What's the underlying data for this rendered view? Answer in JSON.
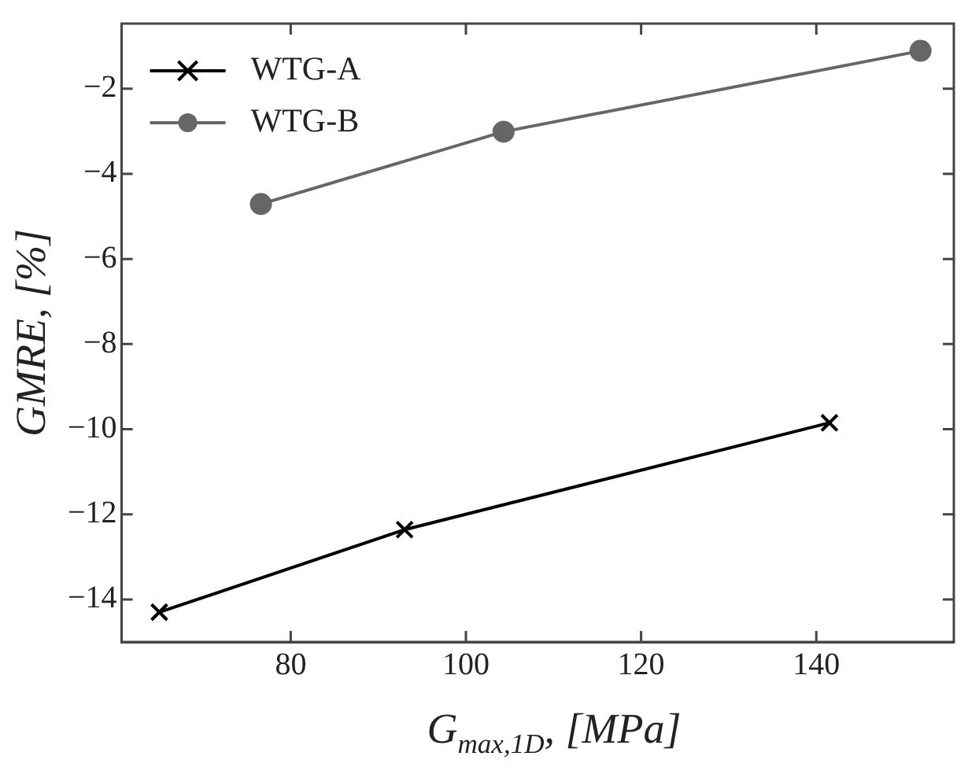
{
  "chart_data": {
    "type": "line",
    "xlabel": "G$_{max,1D}$, [MPa]",
    "ylabel": "GMRE, [%]",
    "xlim": [
      60.7,
      155.7
    ],
    "xticks": [
      80,
      100,
      120,
      140
    ],
    "ylim": [
      -15,
      -0.47
    ],
    "yticks": [
      -14,
      -12,
      -10,
      -8,
      -6,
      -4,
      -2
    ],
    "grid": false,
    "legend": "top left",
    "series": [
      {
        "name": "WTG-A",
        "color": "#000000",
        "marker": "cross",
        "x": [
          65.0,
          93.0,
          141.5
        ],
        "values": [
          -14.3,
          -12.36,
          -9.85
        ]
      },
      {
        "name": "WTG-B",
        "color": "#666666",
        "marker": "circle",
        "x": [
          76.6,
          104.3,
          151.9
        ],
        "values": [
          -4.71,
          -3.01,
          -1.11
        ]
      }
    ]
  }
}
